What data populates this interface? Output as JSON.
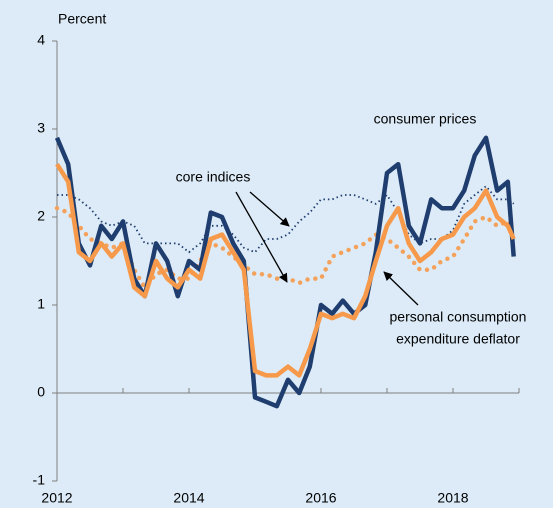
{
  "chart_data": {
    "type": "line",
    "y_label": "Percent",
    "annotations": [
      "consumer prices",
      "core indices",
      "personal consumption",
      "expenditure deflator"
    ],
    "x": [
      2012,
      2012.17,
      2012.33,
      2012.5,
      2012.67,
      2012.83,
      2013,
      2013.17,
      2013.33,
      2013.5,
      2013.67,
      2013.83,
      2014,
      2014.17,
      2014.33,
      2014.5,
      2014.67,
      2014.83,
      2015,
      2015.17,
      2015.33,
      2015.5,
      2015.67,
      2015.83,
      2016,
      2016.17,
      2016.33,
      2016.5,
      2016.67,
      2016.83,
      2017,
      2017.17,
      2017.33,
      2017.5,
      2017.67,
      2017.83,
      2018,
      2018.17,
      2018.33,
      2018.5,
      2018.67,
      2018.83,
      2018.92
    ],
    "series": [
      {
        "color": "#f4a15b",
        "line_style": "dots",
        "values": [
          2.1,
          2.05,
          1.9,
          1.75,
          1.7,
          1.65,
          1.7,
          1.4,
          1.2,
          1.35,
          1.4,
          1.3,
          1.3,
          1.5,
          1.7,
          1.65,
          1.55,
          1.45,
          1.35,
          1.35,
          1.3,
          1.3,
          1.25,
          1.3,
          1.3,
          1.55,
          1.6,
          1.65,
          1.7,
          1.8,
          1.75,
          1.65,
          1.55,
          1.4,
          1.4,
          1.5,
          1.55,
          1.75,
          1.95,
          2.0,
          1.9,
          1.95,
          1.85
        ]
      },
      {
        "color": "#1f3d6e",
        "line_style": "dotted",
        "values": [
          2.25,
          2.25,
          2.2,
          2.1,
          1.95,
          1.9,
          1.95,
          1.9,
          1.7,
          1.7,
          1.7,
          1.7,
          1.6,
          1.7,
          1.9,
          1.9,
          1.8,
          1.65,
          1.6,
          1.75,
          1.75,
          1.8,
          1.95,
          2.05,
          2.2,
          2.2,
          2.25,
          2.25,
          2.2,
          2.15,
          2.25,
          2.05,
          1.8,
          1.7,
          1.75,
          1.75,
          1.85,
          2.15,
          2.25,
          2.35,
          2.2,
          2.2,
          2.15
        ]
      },
      {
        "color": "#1f3d6e",
        "line_style": "solid",
        "values": [
          2.9,
          2.6,
          1.7,
          1.45,
          1.9,
          1.75,
          1.95,
          1.3,
          1.1,
          1.7,
          1.5,
          1.1,
          1.5,
          1.4,
          2.05,
          2.0,
          1.7,
          1.5,
          -0.05,
          -0.1,
          -0.15,
          0.15,
          0.0,
          0.3,
          1.0,
          0.9,
          1.05,
          0.9,
          1.0,
          1.6,
          2.5,
          2.6,
          1.9,
          1.7,
          2.2,
          2.1,
          2.1,
          2.3,
          2.7,
          2.9,
          2.3,
          2.4,
          1.55
        ]
      },
      {
        "color": "#f7994a",
        "line_style": "solid",
        "values": [
          2.6,
          2.4,
          1.6,
          1.5,
          1.7,
          1.55,
          1.7,
          1.2,
          1.1,
          1.5,
          1.3,
          1.2,
          1.4,
          1.3,
          1.75,
          1.8,
          1.6,
          1.4,
          0.25,
          0.2,
          0.2,
          0.3,
          0.2,
          0.5,
          0.9,
          0.85,
          0.9,
          0.85,
          1.1,
          1.5,
          1.9,
          2.1,
          1.7,
          1.5,
          1.6,
          1.75,
          1.8,
          2.0,
          2.1,
          2.3,
          2.0,
          1.9,
          1.75
        ]
      }
    ],
    "xlim": [
      2012,
      2019
    ],
    "xticks": [
      2012,
      2014,
      2016,
      2018
    ],
    "xminorticks": [
      2013,
      2015,
      2017,
      2019
    ],
    "ylim": [
      -1,
      4
    ],
    "yticks": [
      -1,
      0,
      1,
      2,
      3,
      4
    ]
  }
}
